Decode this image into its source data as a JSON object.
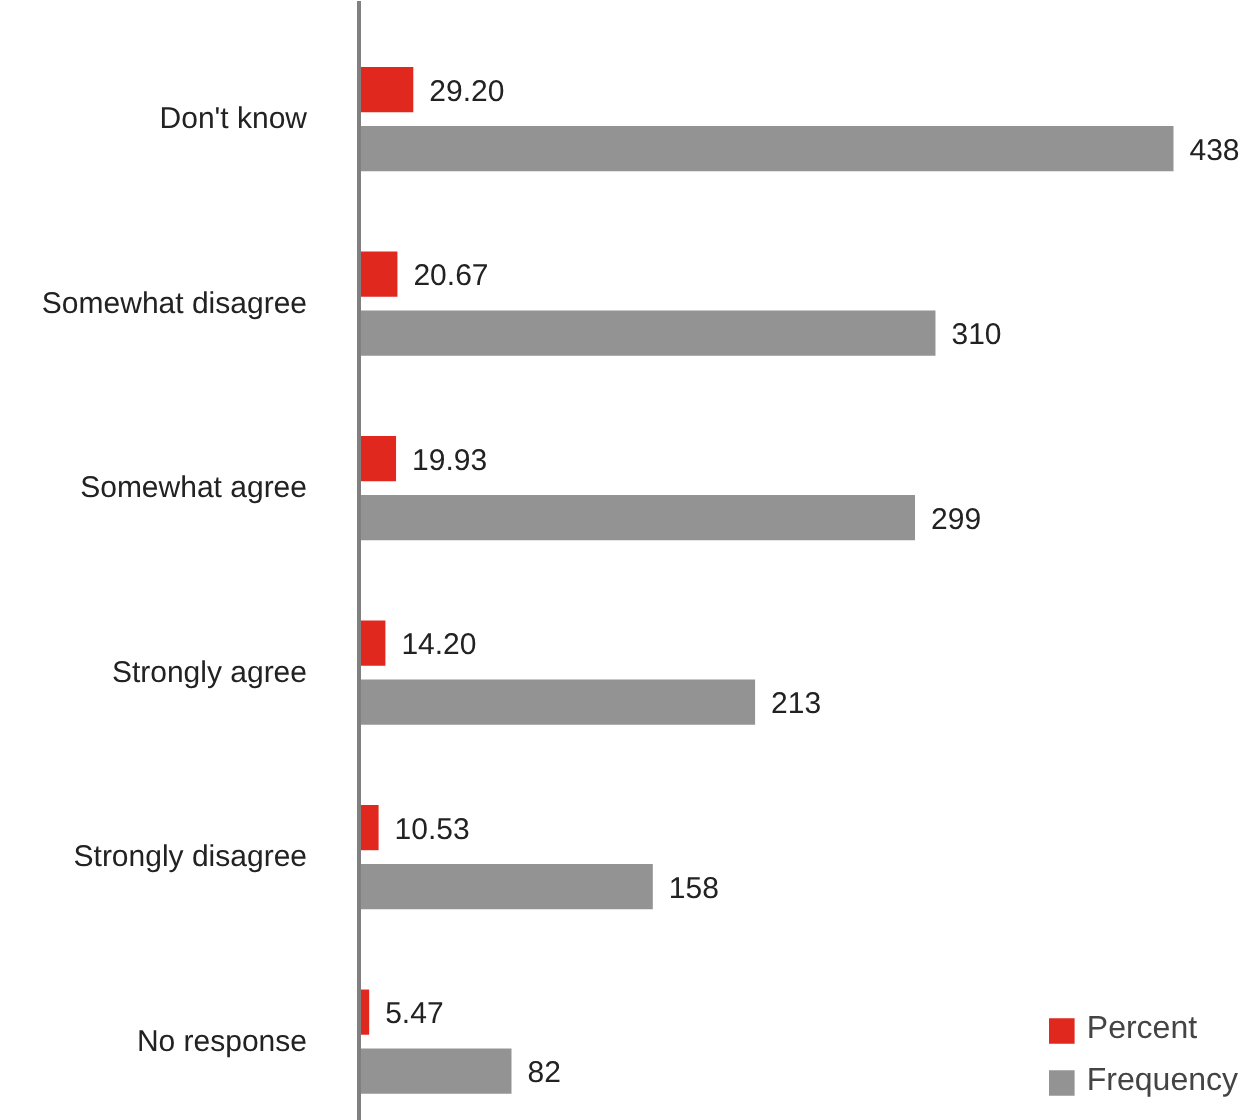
{
  "chart_data": {
    "type": "bar",
    "orientation": "horizontal",
    "categories": [
      "Don't know",
      "Somewhat disagree",
      "Somewhat agree",
      "Strongly agree",
      "Strongly disagree",
      "No response"
    ],
    "series": [
      {
        "name": "Percent",
        "color": "#e0281f",
        "values": [
          29.2,
          20.67,
          19.93,
          14.2,
          10.53,
          5.47
        ],
        "value_labels": [
          "29.20",
          "20.67",
          "19.93",
          "14.20",
          "10.53",
          "5.47"
        ]
      },
      {
        "name": "Frequency",
        "color": "#939393",
        "values": [
          438,
          310,
          299,
          213,
          158,
          82
        ]
      }
    ],
    "data_labels": true,
    "grid": false,
    "legend": "bottom right"
  }
}
